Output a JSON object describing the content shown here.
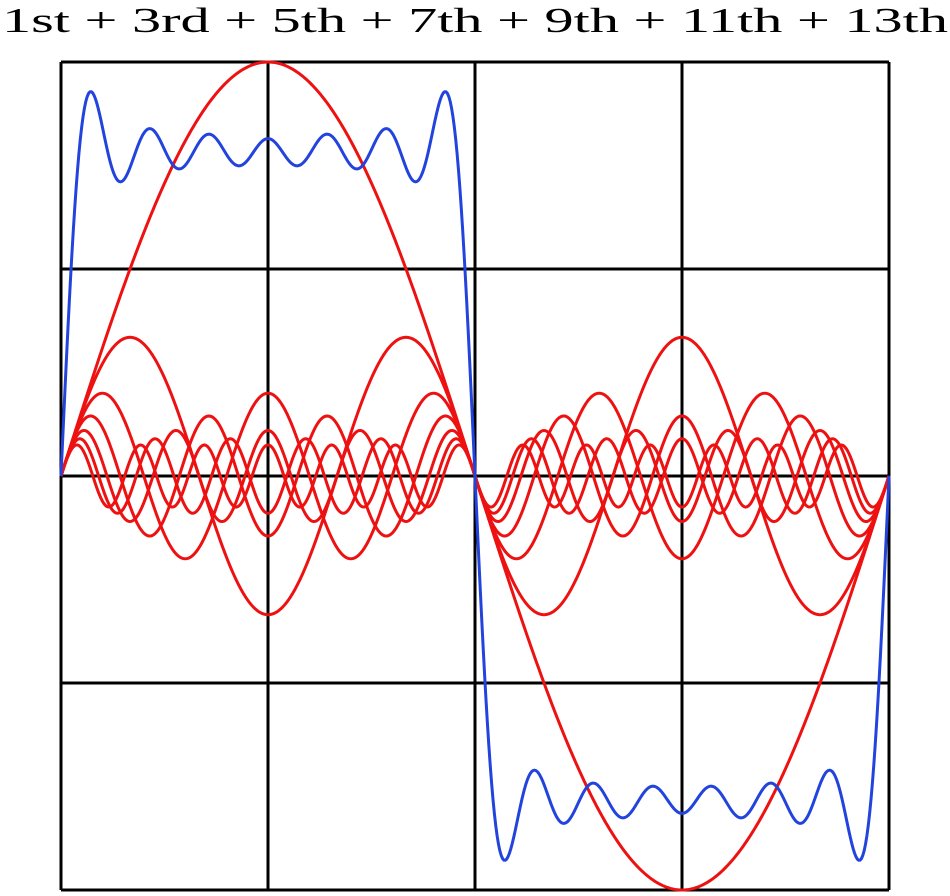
{
  "chart_data": {
    "type": "fourier",
    "title": "1st + 3rd + 5th + 7th + 9th + 11th + 13th",
    "xlim": [
      0,
      4
    ],
    "ylim": [
      -2,
      2
    ],
    "xticks": [
      0,
      1,
      2,
      3,
      4
    ],
    "yticks": [
      -2,
      -1,
      0,
      1,
      2
    ],
    "grid": true,
    "period": 4,
    "series": [
      {
        "color": "#ee1111",
        "harmonic": 1,
        "amplitude": 2
      },
      {
        "color": "#ee1111",
        "harmonic": 3,
        "amplitude": 0.67
      },
      {
        "color": "#ee1111",
        "harmonic": 5,
        "amplitude": 0.4
      },
      {
        "color": "#ee1111",
        "harmonic": 7,
        "amplitude": 0.29
      },
      {
        "color": "#ee1111",
        "harmonic": 9,
        "amplitude": 0.22
      },
      {
        "color": "#ee1111",
        "harmonic": 11,
        "amplitude": 0.18
      },
      {
        "color": "#ee1111",
        "harmonic": 13,
        "amplitude": 0.15
      }
    ],
    "sum_color": "#2244dd"
  }
}
